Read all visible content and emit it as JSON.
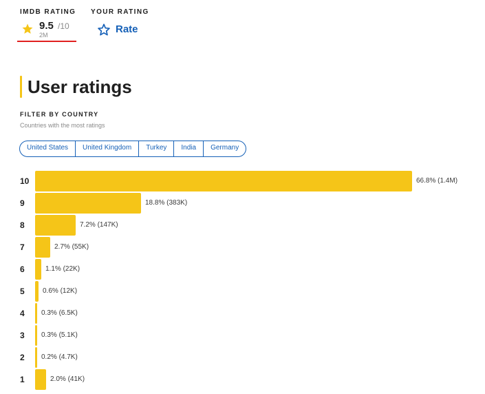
{
  "header": {
    "imdb_rating_label": "IMDb RATING",
    "your_rating_label": "YOUR RATING",
    "imdb_score": "9.5",
    "imdb_out_of": "/10",
    "imdb_votes": "2M",
    "rate_label": "Rate"
  },
  "section": {
    "title": "User ratings",
    "filter_title": "FILTER BY COUNTRY",
    "filter_subtitle": "Countries with the most ratings"
  },
  "countries": [
    "United States",
    "United Kingdom",
    "Turkey",
    "India",
    "Germany"
  ],
  "colors": {
    "accent_yellow": "#f5c518",
    "link_blue": "#1560b7",
    "underline_red": "#e0201f"
  },
  "chart_data": {
    "type": "bar",
    "orientation": "horizontal",
    "categories": [
      "10",
      "9",
      "8",
      "7",
      "6",
      "5",
      "4",
      "3",
      "2",
      "1"
    ],
    "values": [
      66.8,
      18.8,
      7.2,
      2.7,
      1.1,
      0.6,
      0.3,
      0.3,
      0.2,
      2.0
    ],
    "labels": [
      "66.8% (1.4M)",
      "18.8% (383K)",
      "7.2% (147K)",
      "2.7% (55K)",
      "1.1% (22K)",
      "0.6% (12K)",
      "0.3% (6.5K)",
      "0.3% (5.1K)",
      "0.2% (4.7K)",
      "2.0% (41K)"
    ]
  }
}
